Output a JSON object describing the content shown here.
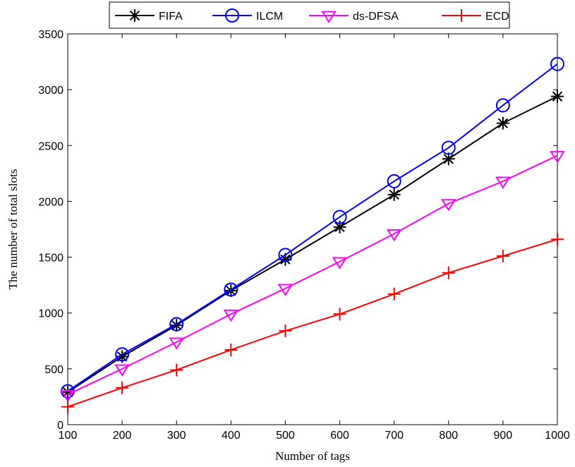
{
  "chart_data": {
    "type": "line",
    "title": "",
    "xlabel": "Number of tags",
    "ylabel": "The number of total slots",
    "xlim": [
      100,
      1000
    ],
    "ylim": [
      0,
      3500
    ],
    "x": [
      100,
      200,
      300,
      400,
      500,
      600,
      700,
      800,
      900,
      1000
    ],
    "x_ticks": [
      "100",
      "200",
      "300",
      "400",
      "500",
      "600",
      "700",
      "800",
      "900",
      "1000"
    ],
    "y_ticks": [
      "0",
      "500",
      "1000",
      "1500",
      "2000",
      "2500",
      "3000",
      "3500"
    ],
    "y_tick_values": [
      0,
      500,
      1000,
      1500,
      2000,
      2500,
      3000,
      3500
    ],
    "grid": false,
    "legend_position": "top",
    "series": [
      {
        "name": "FIFA",
        "color": "#000000",
        "marker": "asterisk",
        "values": [
          290,
          610,
          890,
          1200,
          1480,
          1770,
          2060,
          2380,
          2700,
          2940
        ]
      },
      {
        "name": "ILCM",
        "color": "#0000ff",
        "marker": "circle",
        "values": [
          300,
          630,
          900,
          1210,
          1520,
          1860,
          2180,
          2480,
          2860,
          3230
        ]
      },
      {
        "name": "ds-DFSA",
        "color": "#ff00ff",
        "marker": "triangle-down",
        "values": [
          270,
          500,
          740,
          990,
          1220,
          1460,
          1710,
          1980,
          2180,
          2410
        ]
      },
      {
        "name": "ECD",
        "color": "#ff0000",
        "marker": "plus",
        "values": [
          160,
          330,
          490,
          670,
          840,
          990,
          1170,
          1360,
          1510,
          1660
        ]
      }
    ]
  }
}
